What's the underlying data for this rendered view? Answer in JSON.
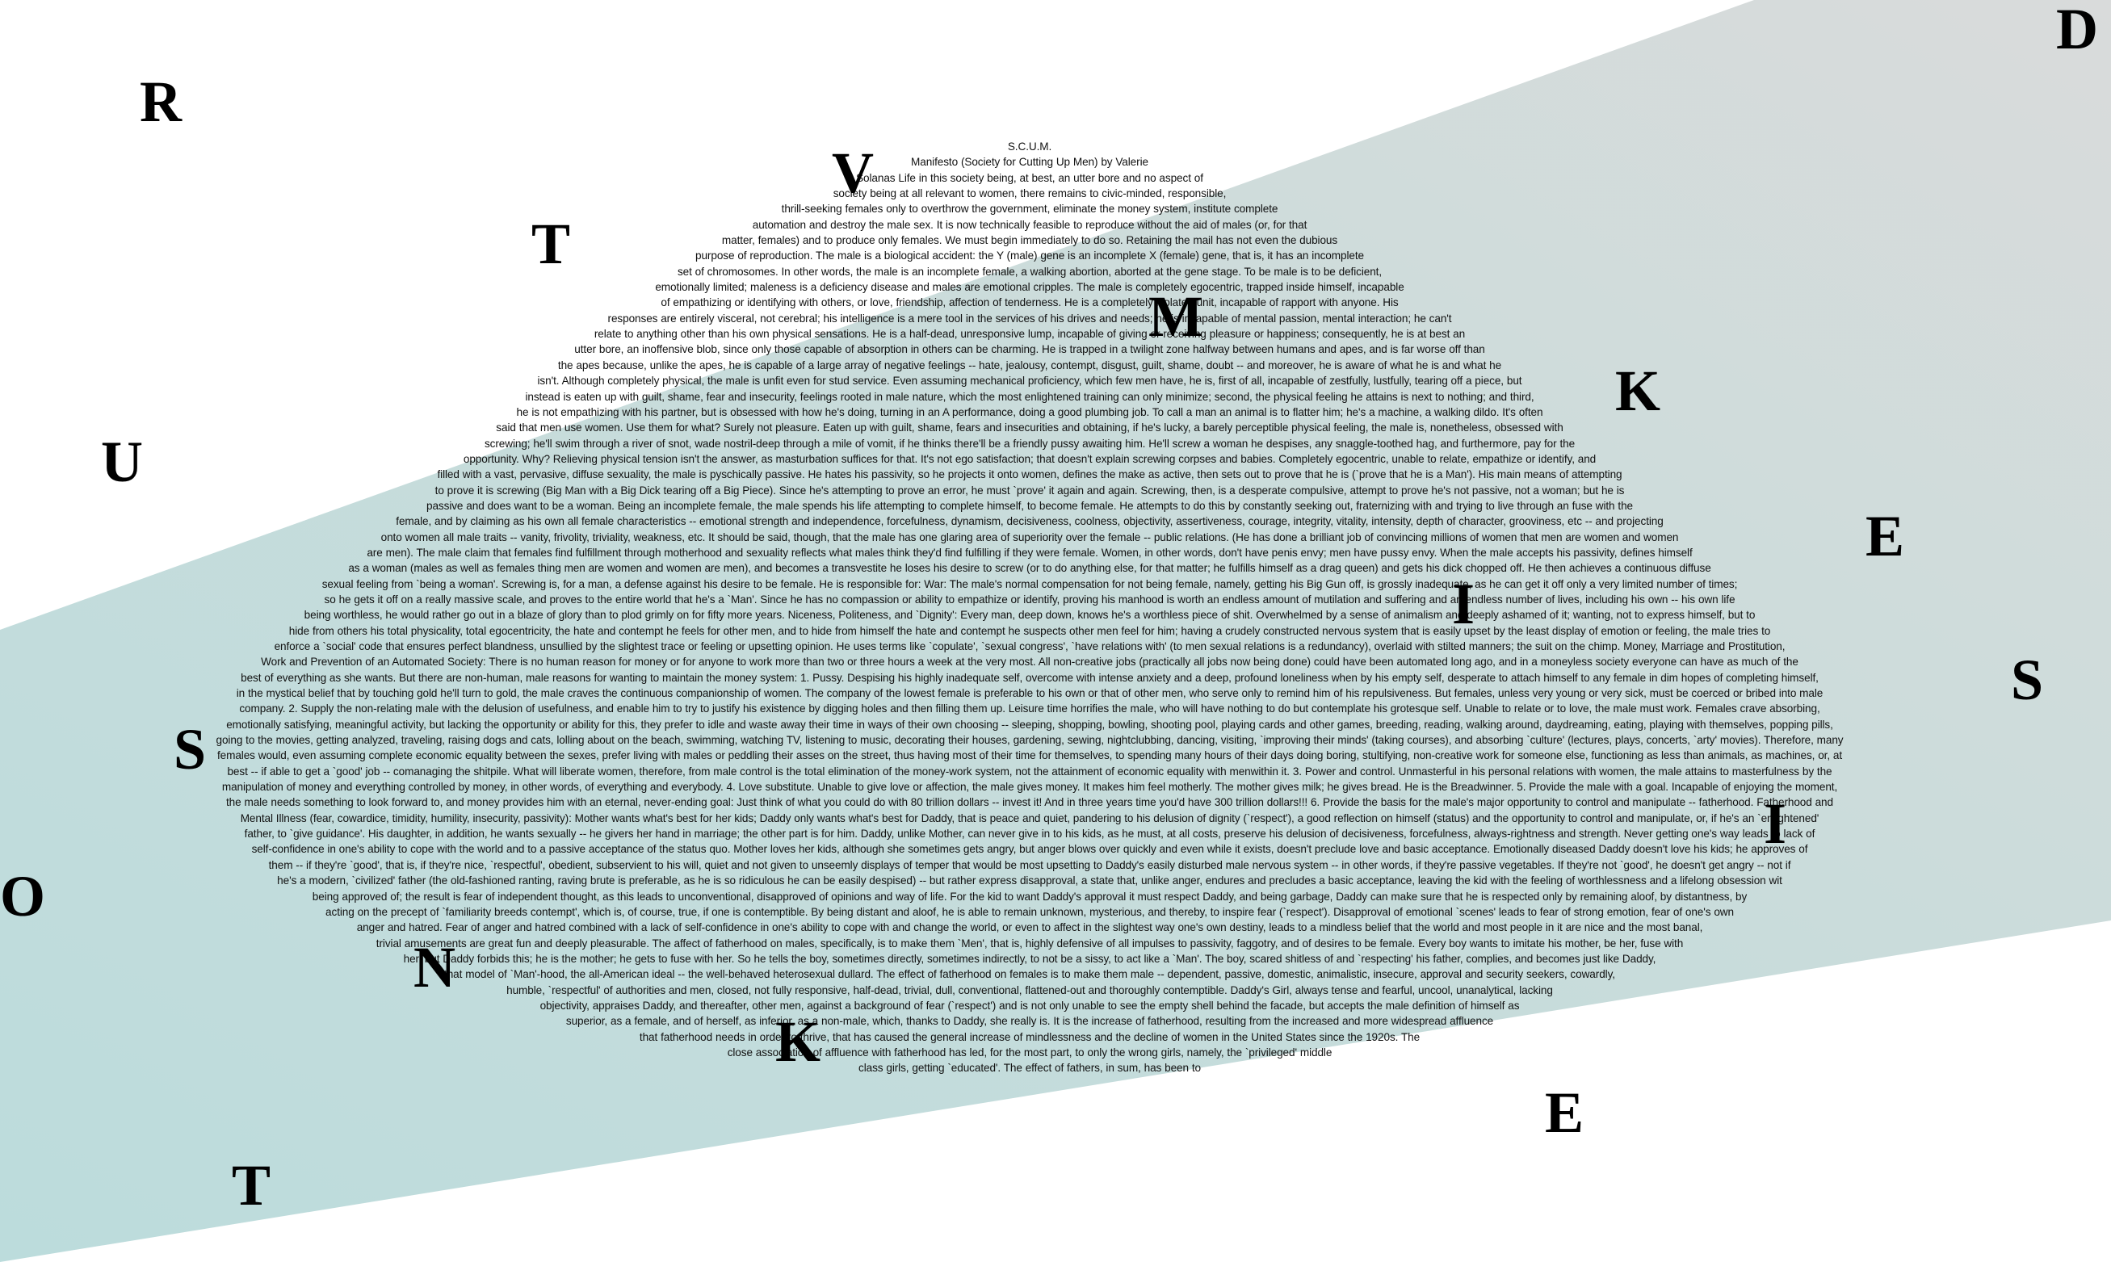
{
  "colors": {
    "band_teal": "#bcdcdc",
    "band_grey": "#d6d9d9",
    "text": "#111111"
  },
  "body_lines": [
    "S.C.U.M.",
    "Manifesto (Society for Cutting Up Men) by Valerie",
    "Solanas Life in this society being, at best, an utter bore and no aspect of",
    "society being at all relevant to women, there remains to civic-minded, responsible,",
    "thrill-seeking females only to overthrow the government, eliminate the money system, institute complete",
    "automation and destroy the male sex. It is now technically feasible to reproduce without the aid of males (or, for that",
    "matter, females) and to produce only females. We must begin immediately to do so. Retaining the mail has not even the dubious",
    "purpose of reproduction. The male is a biological accident: the Y (male) gene is an incomplete X (female) gene, that is, it has an incomplete",
    "set of chromosomes. In other words, the male is an incomplete female, a walking abortion, aborted at the gene stage. To be male is to be deficient,",
    "emotionally limited; maleness is a deficiency disease and males are emotional cripples. The male is completely egocentric, trapped inside himself, incapable",
    "of empathizing or identifying with others, or love, friendship, affection of tenderness. He is a completely isolated unit, incapable of rapport with anyone. His",
    "responses are entirely visceral, not cerebral; his intelligence is a mere tool in the services of his drives and needs; he is incapable of mental passion, mental interaction; he can't",
    "relate to anything other than his own physical sensations. He is a half-dead, unresponsive lump, incapable of giving or receiving pleasure or happiness; consequently, he is at best an",
    "utter bore, an inoffensive blob, since only those capable of absorption in others can be charming. He is trapped in a twilight zone halfway between humans and apes, and is far worse off than",
    "the apes because, unlike the apes, he is capable of a large array of negative feelings -- hate, jealousy, contempt, disgust, guilt, shame, doubt -- and moreover, he is aware of what he is and what he",
    "isn't. Although completely physical, the male is unfit even for stud service. Even assuming mechanical proficiency, which few men have, he is, first of all, incapable of zestfully, lustfully, tearing off a piece, but",
    "instead is eaten up with guilt, shame, fear and insecurity, feelings rooted in male nature, which the most enlightened training can only minimize; second, the physical feeling he attains is next to nothing; and third,",
    "he is not empathizing with his partner, but is obsessed with how he's doing, turning in an A performance, doing a good plumbing job. To call a man an animal is to flatter him; he's a machine, a walking dildo. It's often",
    "said that men use women. Use them for what? Surely not pleasure. Eaten up with guilt, shame, fears and insecurities and obtaining, if he's lucky, a barely perceptible physical feeling, the male is, nonetheless, obsessed with",
    "screwing; he'll swim through a river of snot, wade nostril-deep through a mile of vomit, if he thinks there'll be a friendly pussy awaiting him. He'll screw a woman he despises, any snaggle-toothed hag, and furthermore, pay for the",
    "opportunity. Why? Relieving physical tension isn't the answer, as masturbation suffices for that. It's not ego satisfaction; that doesn't explain screwing corpses and babies. Completely egocentric, unable to relate, empathize or identify, and",
    "filled with a vast, pervasive, diffuse sexuality, the male is pyschically passive. He hates his passivity, so he projects it onto women, defines the make as active, then sets out to prove that he is (`prove that he is a Man'). His main means of attempting",
    "to prove it is screwing (Big Man with a Big Dick tearing off a Big Piece). Since he's attempting to prove an error, he must `prove' it again and again. Screwing, then, is a desperate compulsive, attempt to prove he's not passive, not a woman; but he is",
    "passive and does want to be a woman. Being an incomplete female, the male spends his life attempting to complete himself, to become female. He attempts to do this by constantly seeking out, fraternizing with and trying to live through an fuse with the",
    "female, and by claiming as his own all female characteristics -- emotional strength and independence, forcefulness, dynamism, decisiveness, coolness, objectivity, assertiveness, courage, integrity, vitality, intensity, depth of character, grooviness, etc -- and projecting",
    "onto women all male traits -- vanity, frivolity, triviality, weakness, etc. It should be said, though, that the male has one glaring area of superiority over the female -- public relations. (He has done a brilliant job of convincing millions of women that men are women and women",
    "are men). The male claim that females find fulfillment through motherhood and sexuality reflects what males think they'd find fulfilling if they were female. Women, in other words, don't have penis envy; men have pussy envy. When the male accepts his passivity, defines himself",
    "as a woman (males as well as females thing men are women and women are men), and becomes a transvestite he loses his desire to screw (or to do anything else, for that matter; he fulfills himself as a drag queen) and gets his dick chopped off. He then achieves a continuous diffuse",
    "sexual feeling from `being a woman'. Screwing is, for a man, a defense against his desire to be female. He is responsible for: War: The male's normal compensation for not being female, namely, getting his Big Gun off, is grossly inadequate, as he can get it off only a very limited number of times;",
    "so he gets it off on a really massive scale, and proves to the entire world that he's a `Man'. Since he has no compassion or ability to empathize or identify, proving his manhood is worth an endless amount of mutilation and suffering and an endless number of lives, including his own -- his own life",
    "being worthless, he would rather go out in a blaze of glory than to plod grimly on for fifty more years. Niceness, Politeness, and `Dignity': Every man, deep down, knows he's a worthless piece of shit. Overwhelmed by a sense of animalism and deeply ashamed of it; wanting, not to express himself, but to",
    "hide from others his total physicality, total egocentricity, the hate and contempt he feels for other men, and to hide from himself the hate and contempt he suspects other men feel for him; having a crudely constructed nervous system that is easily upset by the least display of emotion or feeling, the male tries to",
    "enforce a `social' code that ensures perfect blandness, unsullied by the slightest trace or feeling or upsetting opinion. He uses terms like `copulate', `sexual congress', `have relations with' (to men sexual relations is a redundancy), overlaid with stilted manners; the suit on the chimp. Money, Marriage and Prostitution,",
    "Work and Prevention of an Automated Society: There is no human reason for money or for anyone to work more than two or three hours a week at the very most. All non-creative jobs (practically all jobs now being done) could have been automated long ago, and in a moneyless society everyone can have as much of the",
    "best of everything as she wants. But there are non-human, male reasons for wanting to maintain the money system: 1. Pussy. Despising his highly inadequate self, overcome with intense anxiety and a deep, profound loneliness when by his empty self, desperate to attach himself to any female in dim hopes of completing himself,",
    "in the mystical belief that by touching gold he'll turn to gold, the male craves the continuous companionship of women. The company of the lowest female is preferable to his own or that of other men, who serve only to remind him of his repulsiveness. But females, unless very young or very sick, must be coerced or bribed into male",
    "company. 2. Supply the non-relating male with the delusion of usefulness, and enable him to try to justify his existence by digging holes and then filling them up. Leisure time horrifies the male, who will have nothing to do but contemplate his grotesque self. Unable to relate or to love, the male must work. Females crave absorbing,",
    "emotionally satisfying, meaningful activity, but lacking the opportunity or ability for this, they prefer to idle and waste away their time in ways of their own choosing -- sleeping, shopping, bowling, shooting pool, playing cards and other games, breeding, reading, walking around, daydreaming, eating, playing with themselves, popping pills,",
    "going to the movies, getting analyzed, traveling, raising dogs and cats, lolling about on the beach, swimming, watching TV, listening to music, decorating their houses, gardening, sewing, nightclubbing, dancing, visiting, `improving their minds' (taking courses), and absorbing `culture' (lectures, plays, concerts, `arty' movies). Therefore, many",
    "females would, even assuming complete economic equality between the sexes, prefer living with males or peddling their asses on the street, thus having most of their time for themselves, to spending many hours of their days doing boring, stultifying, non-creative work for someone else, functioning as less than animals, as machines, or, at",
    "best -- if able to get a `good' job -- comanaging the shitpile. What will liberate women, therefore, from male control is the total elimination of the money-work system, not the attainment of economic equality with menwithin it. 3. Power and control. Unmasterful in his personal relations with women, the male attains to masterfulness by the",
    "manipulation of money and everything controlled by money, in other words, of everything and everybody. 4. Love substitute. Unable to give love or affection, the male gives money. It makes him feel motherly. The mother gives milk; he gives bread. He is the Breadwinner. 5. Provide the male with a goal. Incapable of enjoying the moment,",
    "the male needs something to look forward to, and money provides him with an eternal, never-ending goal: Just think of what you could do with 80 trillion dollars -- invest it! And in three years time you'd have 300 trillion dollars!!! 6. Provide the basis for the male's major opportunity to control and manipulate -- fatherhood. Fatherhood and",
    "Mental Illness (fear, cowardice, timidity, humility, insecurity, passivity): Mother wants what's best for her kids; Daddy only wants what's best for Daddy, that is peace and quiet, pandering to his delusion of dignity (`respect'), a good reflection on himself (status) and the opportunity to control and manipulate, or, if he's an `enlightened'",
    "father, to `give guidance'. His daughter, in addition, he wants sexually -- he givers her hand in marriage; the other part is for him. Daddy, unlike Mother, can never give in to his kids, as he must, at all costs, preserve his delusion of decisiveness, forcefulness, always-rightness and strength. Never getting one's way leads to lack of",
    "self-confidence in one's ability to cope with the world and to a passive acceptance of the status quo. Mother loves her kids, although she sometimes gets angry, but anger blows over quickly and even while it exists, doesn't preclude love and basic acceptance. Emotionally diseased Daddy doesn't love his kids; he approves of",
    "them -- if they're `good', that is, if they're nice, `respectful', obedient, subservient to his will, quiet and not given to unseemly displays of temper that would be most upsetting to Daddy's easily disturbed male nervous system -- in other words, if they're passive vegetables. If they're not `good', he doesn't get angry -- not if",
    "he's a modern, `civilized' father (the old-fashioned ranting, raving brute is preferable, as he is so ridiculous he can be easily despised) -- but rather express disapproval, a state that, unlike anger, endures and precludes a basic acceptance, leaving the kid with the feeling of worthlessness and a lifelong obsession wit",
    "being approved of; the result is fear of independent thought, as this leads to unconventional, disapproved of opinions and way of life. For the kid to want Daddy's approval it must respect Daddy, and being garbage, Daddy can make sure that he is respected only by remaining aloof, by distantness, by",
    "acting on the precept of `familiarity breeds contempt', which is, of course, true, if one is contemptible. By being distant and aloof, he is able to remain unknown, mysterious, and thereby, to inspire fear (`respect'). Disapproval of emotional `scenes' leads to fear of strong emotion, fear of one's own",
    "anger and hatred. Fear of anger and hatred combined with a lack of self-confidence in one's ability to cope with and change the world, or even to affect in the slightest way one's own destiny, leads to a mindless belief that the world and most people in it are nice and the most banal,",
    "trivial amusements are great fun and deeply pleasurable. The affect of fatherhood on males, specifically, is to make them `Men', that is, highly defensive of all impulses to passivity, faggotry, and of desires to be female. Every boy wants to imitate his mother, be her, fuse with",
    "her, but Daddy forbids this; he is the mother; he gets to fuse with her. So he tells the boy, sometimes directly, sometimes indirectly, to not be a sissy, to act like a `Man'. The boy, scared shitless of and `respecting' his father, complies, and becomes just like Daddy,",
    "that model of `Man'-hood, the all-American ideal -- the well-behaved heterosexual dullard. The effect of fatherhood on females is to make them male -- dependent, passive, domestic, animalistic, insecure, approval and security seekers, cowardly,",
    "humble, `respectful' of authorities and men, closed, not fully responsive, half-dead, trivial, dull, conventional, flattened-out and thoroughly contemptible. Daddy's Girl, always tense and fearful, uncool, unanalytical, lacking",
    "objectivity, appraises Daddy, and thereafter, other men, against a background of fear (`respect') and is not only unable to see the empty shell behind the facade, but accepts the male definition of himself as",
    "superior, as a female, and of herself, as inferior, as a non-male, which, thanks to Daddy, she really is. It is the increase of fatherhood, resulting from the increased and more widespread affluence",
    "that fatherhood needs in order to thrive, that has caused the general increase of mindlessness and the decline of women in the United States since the 1920s. The",
    "close association of affluence with fatherhood has led, for the most part, to only the wrong girls, namely, the `privileged' middle",
    "class girls, getting `educated'. The effect of fathers, in sum, has been to"
  ],
  "letters": [
    {
      "id": "r",
      "char": "R"
    },
    {
      "id": "v",
      "char": "V"
    },
    {
      "id": "t-top",
      "char": "T"
    },
    {
      "id": "m",
      "char": "M"
    },
    {
      "id": "d",
      "char": "D"
    },
    {
      "id": "k-right",
      "char": "K"
    },
    {
      "id": "u",
      "char": "U"
    },
    {
      "id": "e-right",
      "char": "E"
    },
    {
      "id": "i-mid",
      "char": "I"
    },
    {
      "id": "s-right",
      "char": "S"
    },
    {
      "id": "s-left",
      "char": "S"
    },
    {
      "id": "i-right",
      "char": "I"
    },
    {
      "id": "o",
      "char": "O"
    },
    {
      "id": "n",
      "char": "N"
    },
    {
      "id": "k-bottom",
      "char": "K"
    },
    {
      "id": "e-bottom",
      "char": "E"
    },
    {
      "id": "t-bottom",
      "char": "T"
    }
  ]
}
